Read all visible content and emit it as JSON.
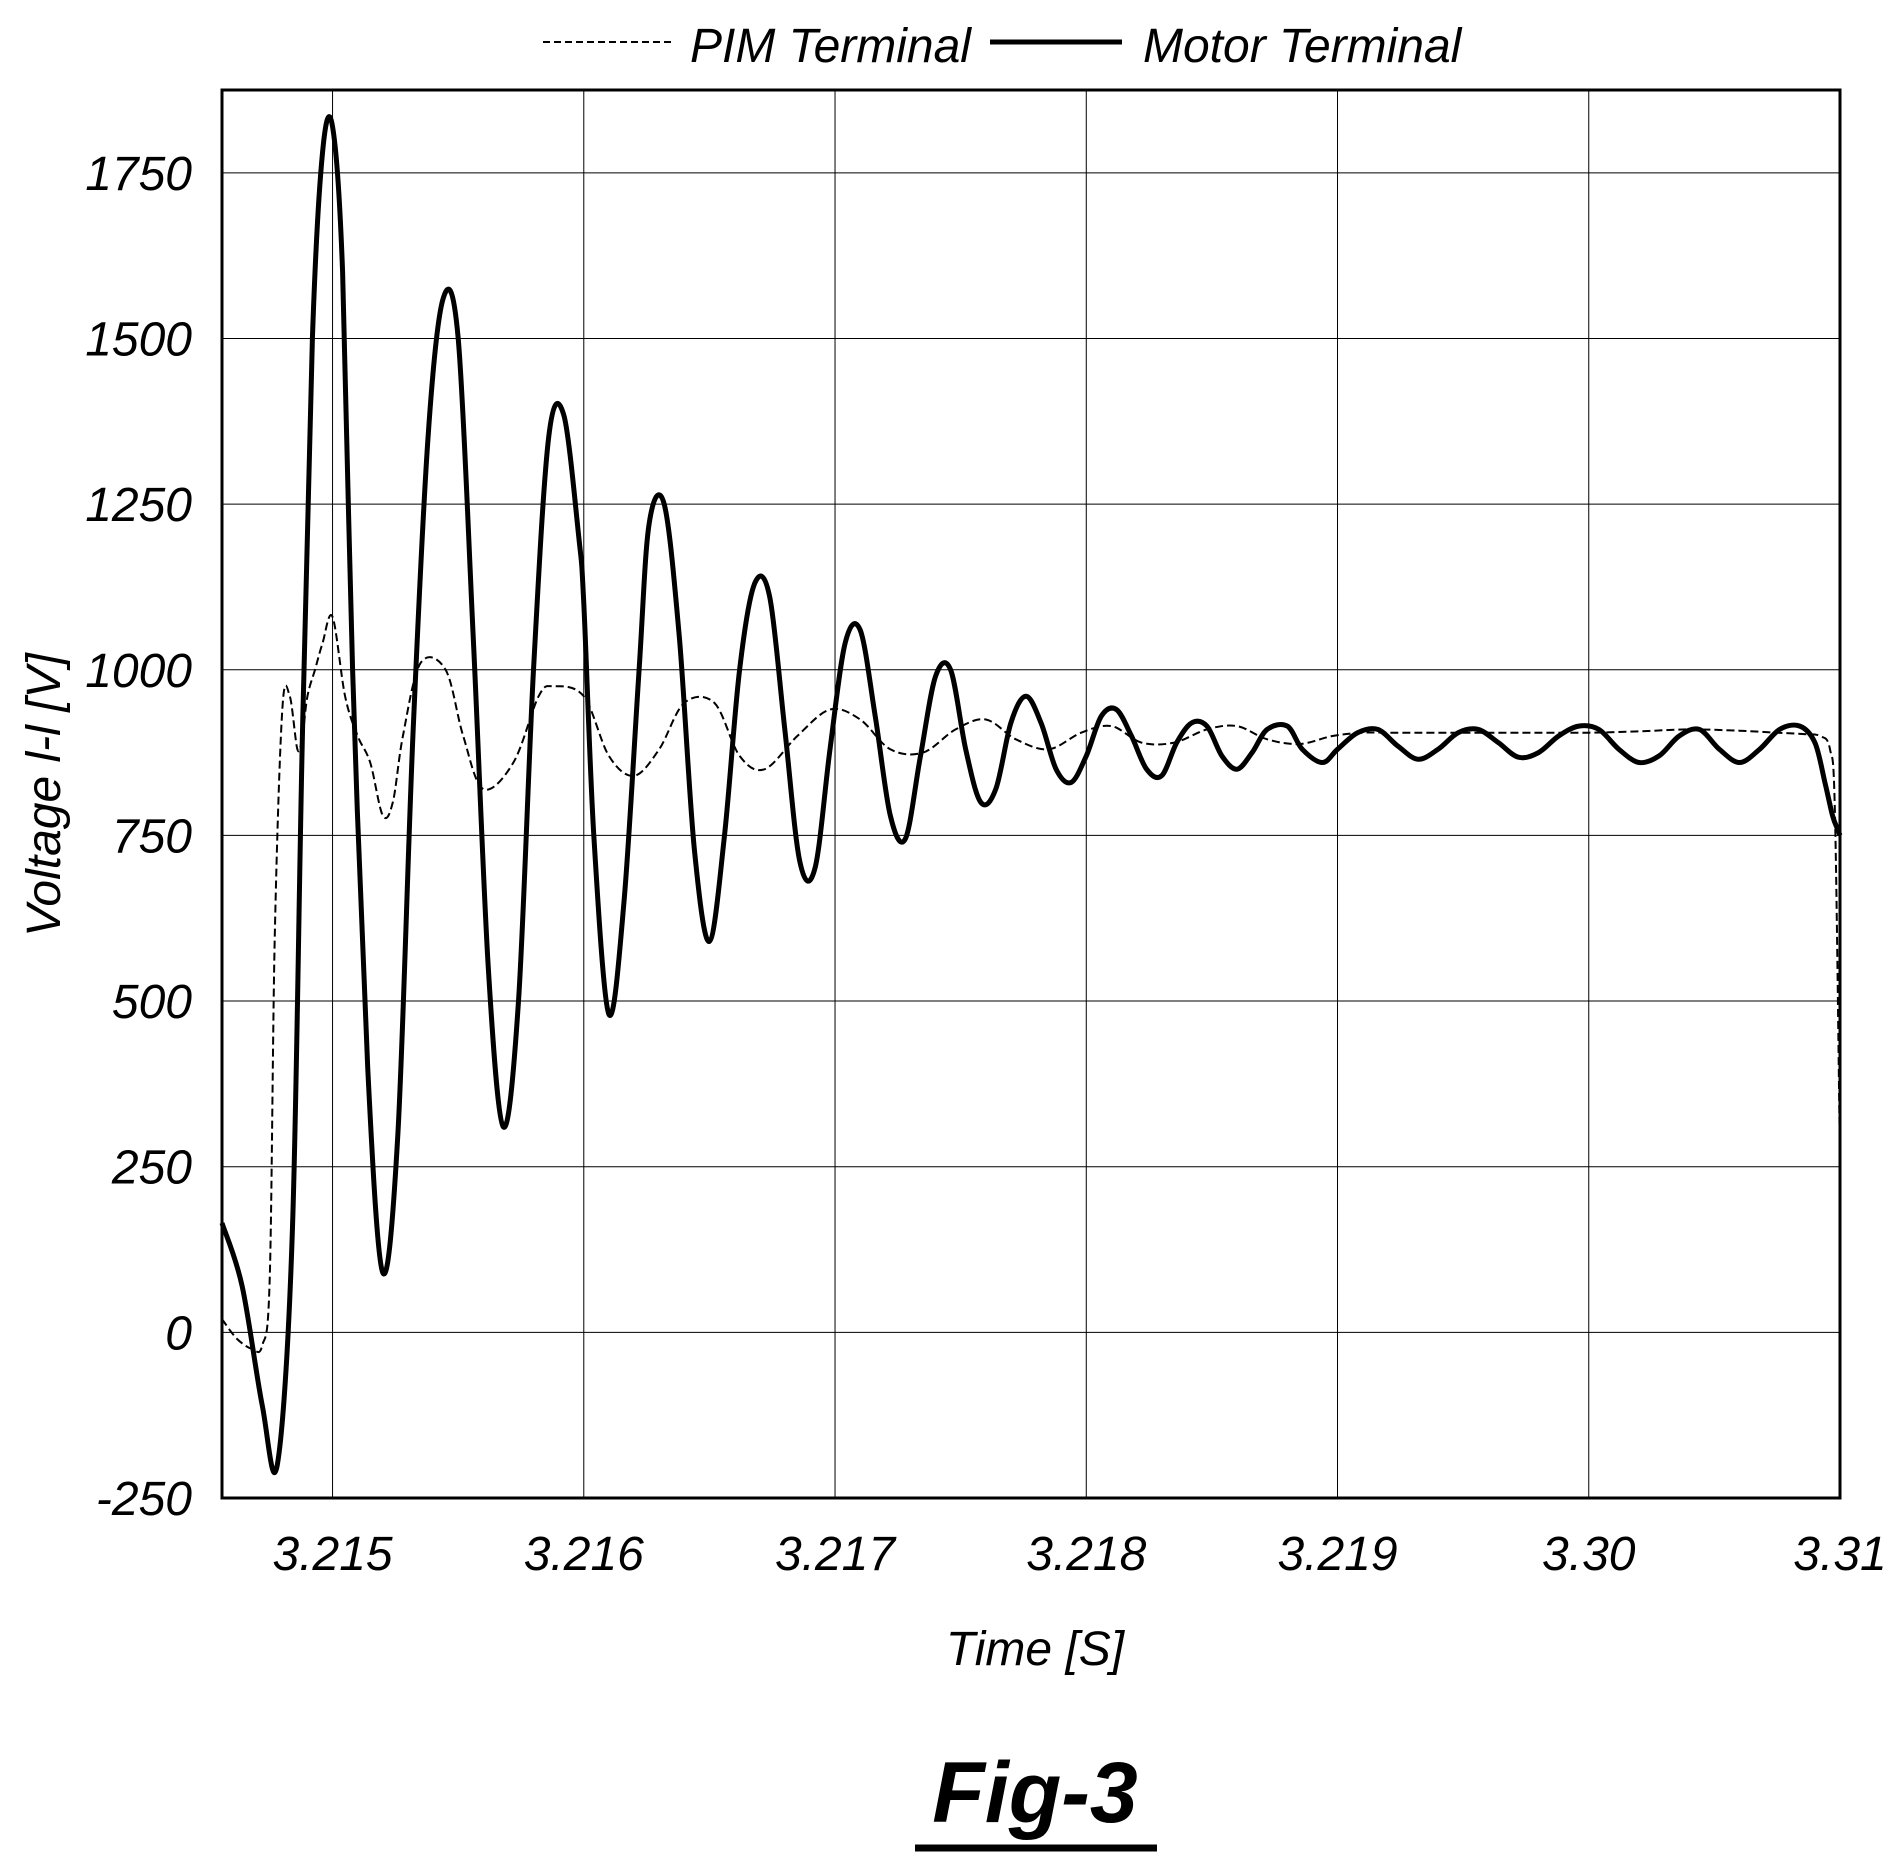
{
  "figure_label": "Fig-3",
  "chart_data": {
    "type": "line",
    "title": "",
    "xlabel": "Time [S]",
    "ylabel": "Voltage l-l [V]",
    "x_ticks": [
      "3.215",
      "3.216",
      "3.217",
      "3.218",
      "3.219",
      "3.30",
      "3.31"
    ],
    "x_tick_index": [
      0,
      1,
      2,
      3,
      4,
      5,
      6
    ],
    "xlim_index": [
      -0.44,
      6
    ],
    "ylim": [
      -250,
      1875
    ],
    "y_ticks": [
      -250,
      0,
      250,
      500,
      750,
      1000,
      1250,
      1500,
      1750
    ],
    "grid": true,
    "legend_position": "top-center",
    "series": [
      {
        "name": "PIM Terminal",
        "style": "dashed",
        "color": "#000000",
        "x": [
          -0.44,
          -0.38,
          -0.32,
          -0.28,
          -0.25,
          -0.23,
          -0.2,
          -0.17,
          -0.14,
          -0.12,
          -0.1,
          -0.07,
          -0.04,
          0.0,
          0.05,
          0.1,
          0.15,
          0.2,
          0.24,
          0.28,
          0.35,
          0.45,
          0.52,
          0.6,
          0.72,
          0.82,
          0.88,
          1.0,
          1.1,
          1.2,
          1.3,
          1.4,
          1.52,
          1.62,
          1.72,
          1.85,
          1.98,
          2.1,
          2.22,
          2.35,
          2.48,
          2.6,
          2.72,
          2.85,
          2.98,
          3.1,
          3.22,
          3.35,
          3.48,
          3.6,
          3.72,
          3.85,
          3.98,
          4.1,
          4.22,
          4.4,
          4.6,
          4.8,
          5.0,
          5.2,
          5.4,
          5.6,
          5.75,
          5.85,
          5.92,
          5.96,
          5.98,
          6.0
        ],
        "y": [
          20,
          -10,
          -25,
          -20,
          80,
          600,
          940,
          960,
          880,
          900,
          960,
          1000,
          1040,
          1080,
          960,
          900,
          860,
          780,
          800,
          900,
          1010,
          1000,
          900,
          820,
          860,
          960,
          975,
          960,
          870,
          840,
          880,
          950,
          950,
          870,
          850,
          900,
          940,
          925,
          880,
          875,
          910,
          925,
          895,
          880,
          905,
          915,
          890,
          890,
          910,
          915,
          895,
          888,
          900,
          905,
          905,
          905,
          905,
          905,
          905,
          907,
          910,
          908,
          905,
          903,
          900,
          880,
          780,
          250
        ]
      },
      {
        "name": "Motor Terminal",
        "style": "solid",
        "color": "#000000",
        "x": [
          -0.44,
          -0.36,
          -0.28,
          -0.22,
          -0.16,
          -0.12,
          -0.08,
          -0.04,
          0.0,
          0.04,
          0.08,
          0.14,
          0.2,
          0.26,
          0.32,
          0.38,
          0.44,
          0.5,
          0.56,
          0.62,
          0.68,
          0.74,
          0.8,
          0.86,
          0.92,
          0.98,
          1.0,
          1.04,
          1.1,
          1.16,
          1.22,
          1.26,
          1.32,
          1.38,
          1.44,
          1.5,
          1.56,
          1.62,
          1.68,
          1.74,
          1.8,
          1.86,
          1.92,
          1.98,
          2.04,
          2.1,
          2.16,
          2.22,
          2.28,
          2.34,
          2.4,
          2.46,
          2.52,
          2.58,
          2.64,
          2.7,
          2.76,
          2.82,
          2.88,
          2.94,
          3.0,
          3.06,
          3.12,
          3.18,
          3.24,
          3.3,
          3.36,
          3.42,
          3.48,
          3.54,
          3.6,
          3.66,
          3.72,
          3.8,
          3.86,
          3.94,
          4.0,
          4.08,
          4.16,
          4.24,
          4.32,
          4.4,
          4.48,
          4.56,
          4.64,
          4.72,
          4.8,
          4.88,
          4.96,
          5.04,
          5.12,
          5.2,
          5.28,
          5.36,
          5.44,
          5.52,
          5.6,
          5.68,
          5.76,
          5.84,
          5.9,
          5.94,
          5.97,
          5.99,
          6.0
        ],
        "y": [
          165,
          70,
          -110,
          -200,
          150,
          900,
          1500,
          1780,
          1820,
          1600,
          1000,
          400,
          90,
          300,
          900,
          1350,
          1560,
          1500,
          1050,
          550,
          310,
          500,
          1000,
          1350,
          1385,
          1200,
          1100,
          750,
          480,
          650,
          1000,
          1220,
          1250,
          1050,
          730,
          590,
          750,
          1000,
          1130,
          1110,
          910,
          710,
          700,
          880,
          1040,
          1060,
          930,
          780,
          745,
          870,
          990,
          1000,
          880,
          800,
          820,
          920,
          960,
          920,
          850,
          830,
          870,
          930,
          940,
          900,
          850,
          840,
          890,
          920,
          915,
          870,
          850,
          875,
          910,
          915,
          880,
          860,
          880,
          905,
          910,
          885,
          865,
          880,
          905,
          910,
          890,
          868,
          875,
          900,
          915,
          910,
          880,
          860,
          870,
          900,
          910,
          880,
          860,
          880,
          910,
          915,
          890,
          830,
          780,
          760,
          750
        ]
      }
    ]
  }
}
